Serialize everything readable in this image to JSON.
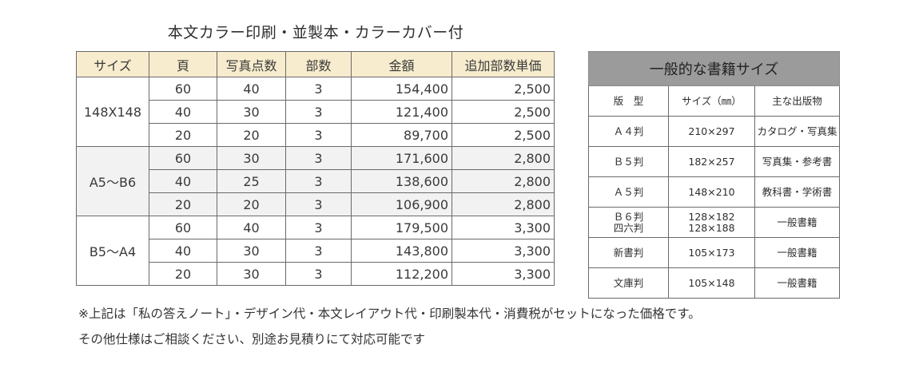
{
  "title": "本文カラー印刷・並製本・カラーカバー付",
  "price_table": {
    "headers": [
      "サイズ",
      "頁",
      "写真点数",
      "部数",
      "金額",
      "追加部数単価"
    ],
    "groups": [
      {
        "size": "148X148",
        "rows": [
          {
            "pages": "60",
            "photos": "40",
            "copies": "3",
            "price": "154,400",
            "unit": "2,500"
          },
          {
            "pages": "40",
            "photos": "30",
            "copies": "3",
            "price": "121,400",
            "unit": "2,500"
          },
          {
            "pages": "20",
            "photos": "20",
            "copies": "3",
            "price": "89,700",
            "unit": "2,500"
          }
        ]
      },
      {
        "size": "A5～B6",
        "rows": [
          {
            "pages": "60",
            "photos": "30",
            "copies": "3",
            "price": "171,600",
            "unit": "2,800"
          },
          {
            "pages": "40",
            "photos": "25",
            "copies": "3",
            "price": "138,600",
            "unit": "2,800"
          },
          {
            "pages": "20",
            "photos": "20",
            "copies": "3",
            "price": "106,900",
            "unit": "2,800"
          }
        ]
      },
      {
        "size": "B5～A4",
        "rows": [
          {
            "pages": "60",
            "photos": "40",
            "copies": "3",
            "price": "179,500",
            "unit": "3,300"
          },
          {
            "pages": "40",
            "photos": "30",
            "copies": "3",
            "price": "143,800",
            "unit": "3,300"
          },
          {
            "pages": "20",
            "photos": "30",
            "copies": "3",
            "price": "112,200",
            "unit": "3,300"
          }
        ]
      }
    ]
  },
  "size_table": {
    "title": "一般的な書籍サイズ",
    "headers": [
      "版　型",
      "サイズ（㎜）",
      "主な出版物"
    ],
    "rows": [
      {
        "format": "Ａ４判",
        "size": "210×297",
        "use": "カタログ・写真集"
      },
      {
        "format": "Ｂ５判",
        "size": "182×257",
        "use": "写真集・参考書"
      },
      {
        "format": "Ａ５判",
        "size": "148×210",
        "use": "教科書・学術書"
      },
      {
        "format": "Ｂ６判",
        "format2": "四六判",
        "size": "128×182",
        "size2": "128×188",
        "use": "一般書籍"
      },
      {
        "format": "新書判",
        "size": "105×173",
        "use": "一般書籍"
      },
      {
        "format": "文庫判",
        "size": "105×148",
        "use": "一般書籍"
      }
    ]
  },
  "footnotes": [
    "※上記は「私の答えノート」・デザイン代・本文レイアウト代・印刷製本代・消費税がセットになった価格です。",
    "その他仕様はご相談ください、別途お見積りにて対応可能です"
  ]
}
